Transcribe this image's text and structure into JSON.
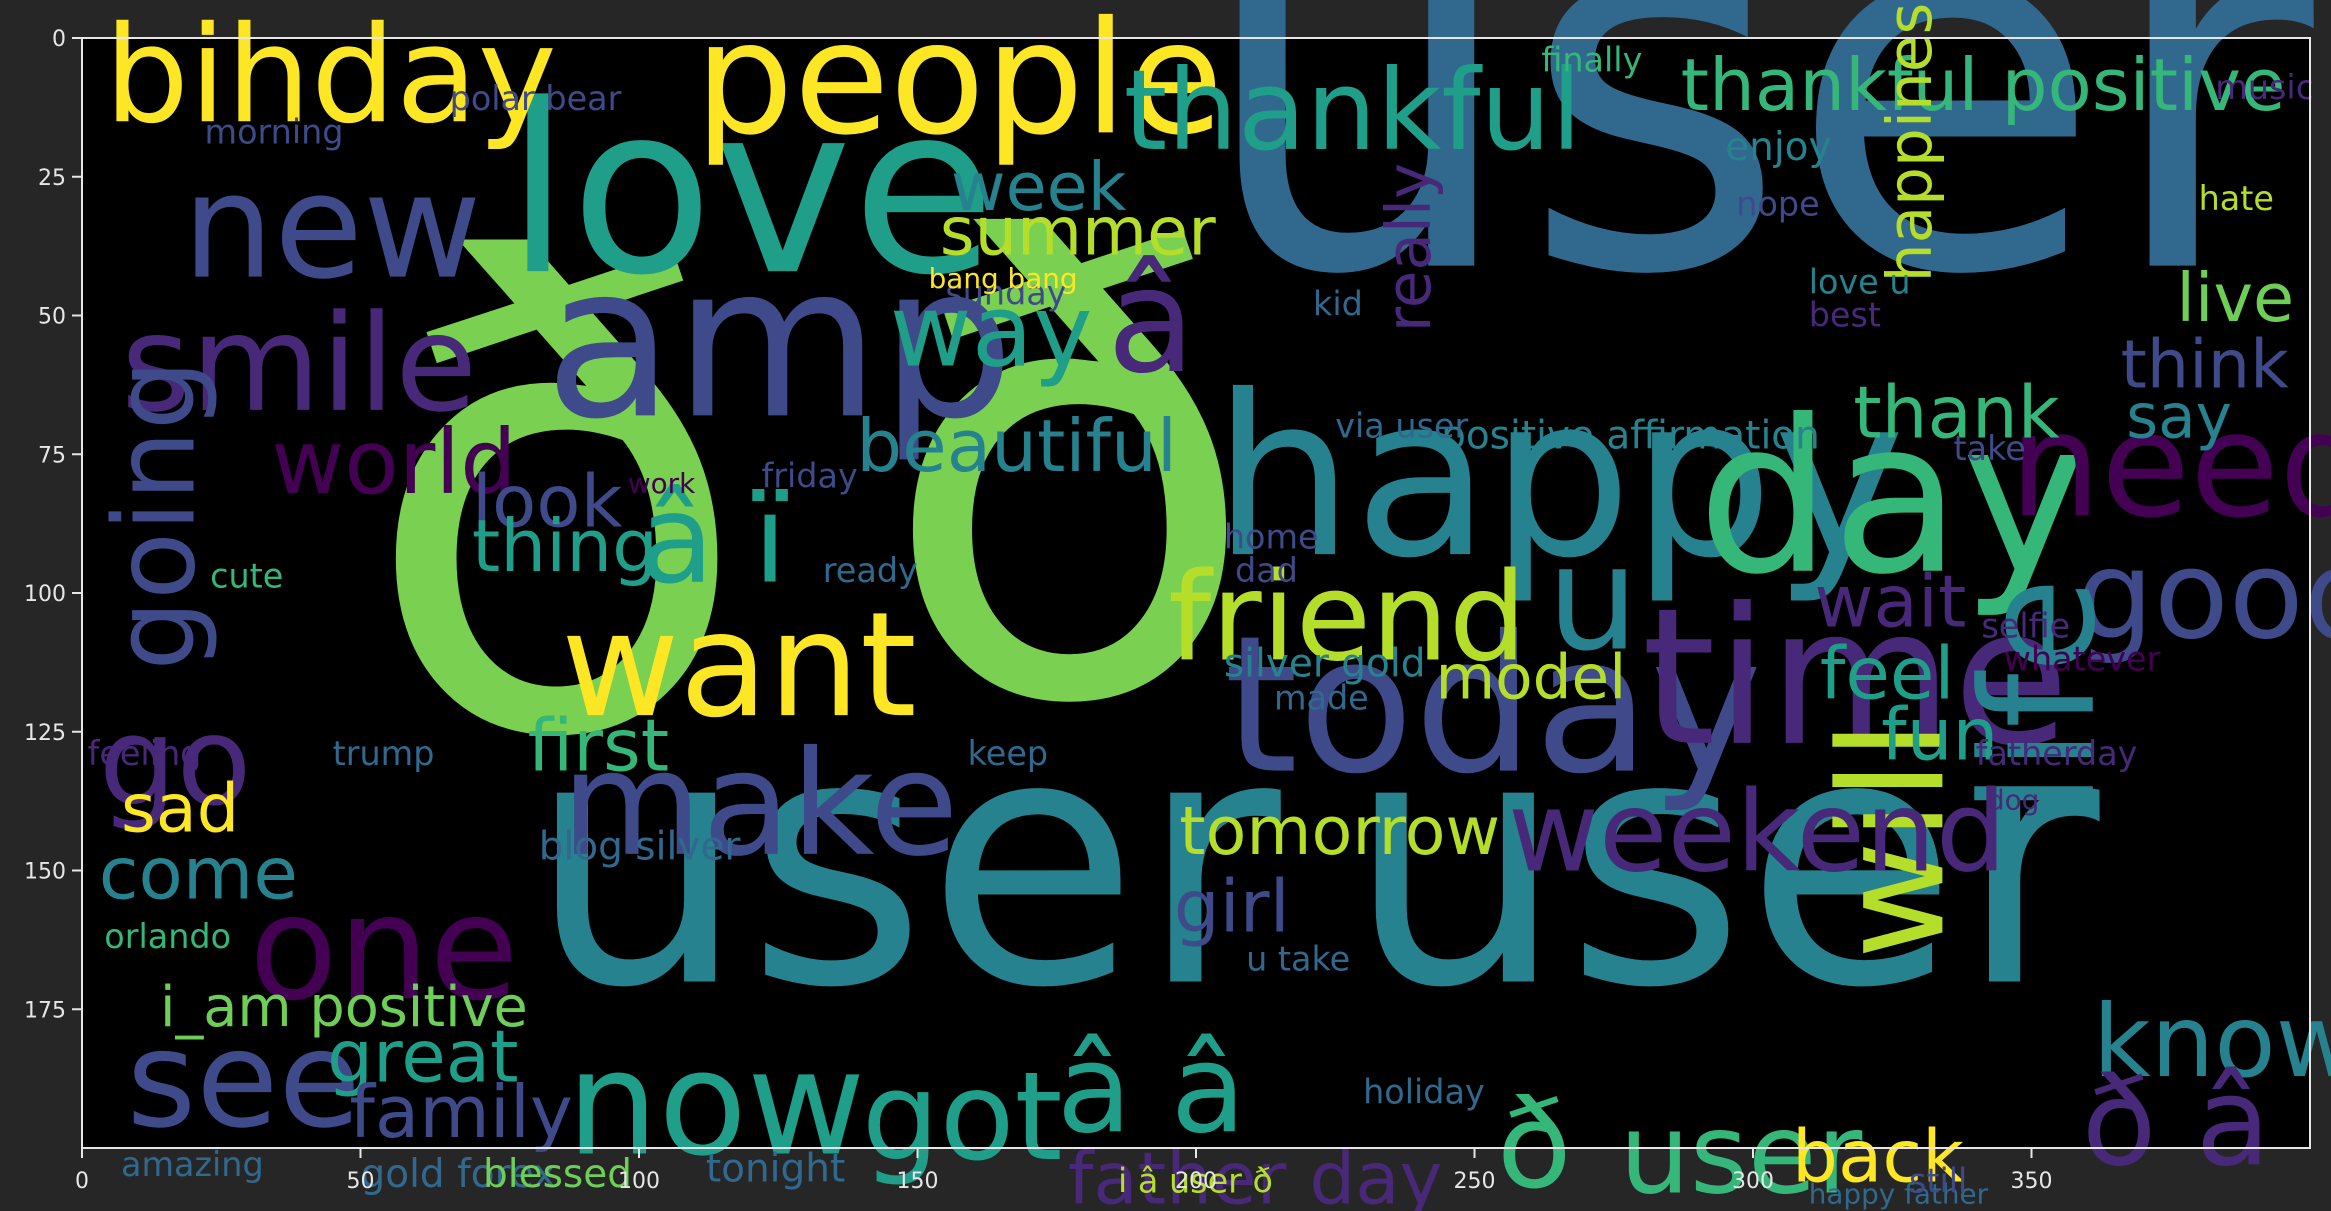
{
  "chart_data": {
    "type": "wordcloud",
    "xlim": [
      0,
      400
    ],
    "ylim": [
      200,
      0
    ],
    "x_ticks": [
      0,
      50,
      100,
      150,
      200,
      250,
      300,
      350
    ],
    "y_ticks": [
      0,
      25,
      50,
      75,
      100,
      125,
      150,
      175
    ],
    "background": "#000000",
    "axes_color": "#262626",
    "tick_label_color": "#e6e6e6",
    "palette": [
      "#440154",
      "#482878",
      "#3e4a89",
      "#31688e",
      "#26828e",
      "#1f9e89",
      "#35b779",
      "#6ece58",
      "#b5de2b",
      "#fde725"
    ],
    "words": [
      {
        "text": "user",
        "x": 200,
        "y": 41,
        "size": 92,
        "color": "#31688e",
        "angle": 0
      },
      {
        "text": "ð",
        "x": 50,
        "y": 124,
        "size": 115,
        "color": "#7ad151",
        "angle": 0
      },
      {
        "text": "ð",
        "x": 143,
        "y": 118,
        "size": 112,
        "color": "#7ad151",
        "angle": 0
      },
      {
        "text": "user",
        "x": 80,
        "y": 170,
        "size": 62,
        "color": "#26828e",
        "angle": 0
      },
      {
        "text": "user",
        "x": 227,
        "y": 170,
        "size": 62,
        "color": "#26828e",
        "angle": 0
      },
      {
        "text": "love",
        "x": 76,
        "y": 42,
        "size": 42,
        "color": "#1f9e89",
        "angle": 0
      },
      {
        "text": "amp",
        "x": 83,
        "y": 68,
        "size": 38,
        "color": "#3e4a89",
        "angle": 0
      },
      {
        "text": "happy",
        "x": 203,
        "y": 93,
        "size": 40,
        "color": "#26828e",
        "angle": 0
      },
      {
        "text": "day",
        "x": 290,
        "y": 96,
        "size": 38,
        "color": "#35b779",
        "angle": 0
      },
      {
        "text": "today",
        "x": 205,
        "y": 132,
        "size": 34,
        "color": "#3e4a89",
        "angle": 0
      },
      {
        "text": "time",
        "x": 280,
        "y": 127,
        "size": 34,
        "color": "#482878",
        "angle": 0
      },
      {
        "text": "people",
        "x": 110,
        "y": 17,
        "size": 28,
        "color": "#fde725",
        "angle": 0
      },
      {
        "text": "bihday",
        "x": 4,
        "y": 15,
        "size": 24,
        "color": "#fde725",
        "angle": 0
      },
      {
        "text": "new",
        "x": 18,
        "y": 43,
        "size": 26,
        "color": "#3e4a89",
        "angle": 0
      },
      {
        "text": "smile",
        "x": 7,
        "y": 67,
        "size": 24,
        "color": "#482878",
        "angle": 0
      },
      {
        "text": "world",
        "x": 34,
        "y": 82,
        "size": 16,
        "color": "#440154",
        "angle": 0
      },
      {
        "text": "going",
        "x": 20,
        "y": 114,
        "size": 20,
        "color": "#3e4a89",
        "angle": -90
      },
      {
        "text": "go",
        "x": 3,
        "y": 138,
        "size": 22,
        "color": "#482878",
        "angle": 0
      },
      {
        "text": "want",
        "x": 86,
        "y": 122,
        "size": 26,
        "color": "#fde725",
        "angle": 0
      },
      {
        "text": "make",
        "x": 86,
        "y": 147,
        "size": 26,
        "color": "#3e4a89",
        "angle": 0
      },
      {
        "text": "one",
        "x": 30,
        "y": 173,
        "size": 26,
        "color": "#440154",
        "angle": 0
      },
      {
        "text": "see",
        "x": 8,
        "y": 196,
        "size": 24,
        "color": "#3e4a89",
        "angle": 0
      },
      {
        "text": "now",
        "x": 87,
        "y": 201,
        "size": 26,
        "color": "#1f9e89",
        "angle": 0
      },
      {
        "text": "got",
        "x": 140,
        "y": 202,
        "size": 22,
        "color": "#1f9e89",
        "angle": 0
      },
      {
        "text": "great",
        "x": 44,
        "y": 188,
        "size": 13,
        "color": "#1f9e89",
        "angle": 0
      },
      {
        "text": "family",
        "x": 48,
        "y": 198,
        "size": 13,
        "color": "#3e4a89",
        "angle": 0
      },
      {
        "text": "thankful",
        "x": 187,
        "y": 20,
        "size": 20,
        "color": "#1f9e89",
        "angle": 0
      },
      {
        "text": "thankful positive",
        "x": 287,
        "y": 13,
        "size": 13,
        "color": "#35b779",
        "angle": 0
      },
      {
        "text": "week",
        "x": 156,
        "y": 31,
        "size": 12,
        "color": "#26828e",
        "angle": 0
      },
      {
        "text": "summer",
        "x": 154,
        "y": 39,
        "size": 12,
        "color": "#b5de2b",
        "angle": 0
      },
      {
        "text": "way",
        "x": 145,
        "y": 59,
        "size": 18,
        "color": "#1f9e89",
        "angle": 0
      },
      {
        "text": "â",
        "x": 184,
        "y": 60,
        "size": 26,
        "color": "#482878",
        "angle": 0
      },
      {
        "text": "beautiful",
        "x": 139,
        "y": 78,
        "size": 13,
        "color": "#26828e",
        "angle": 0
      },
      {
        "text": "look",
        "x": 70,
        "y": 88,
        "size": 13,
        "color": "#3e4a89",
        "angle": 0
      },
      {
        "text": "thing",
        "x": 70,
        "y": 96,
        "size": 13,
        "color": "#1f9e89",
        "angle": 0
      },
      {
        "text": "â ï",
        "x": 100,
        "y": 98,
        "size": 22,
        "color": "#1f9e89",
        "angle": 0
      },
      {
        "text": "friend",
        "x": 195,
        "y": 112,
        "size": 22,
        "color": "#b5de2b",
        "angle": 0
      },
      {
        "text": "u",
        "x": 263,
        "y": 110,
        "size": 26,
        "color": "#26828e",
        "angle": 0
      },
      {
        "text": "need",
        "x": 346,
        "y": 86,
        "size": 26,
        "color": "#440154",
        "angle": 0
      },
      {
        "text": "good",
        "x": 358,
        "y": 108,
        "size": 22,
        "color": "#3e4a89",
        "angle": 0
      },
      {
        "text": "life",
        "x": 361,
        "y": 140,
        "size": 28,
        "color": "#26828e",
        "angle": -90
      },
      {
        "text": "will",
        "x": 334,
        "y": 166,
        "size": 26,
        "color": "#b5de2b",
        "angle": -90
      },
      {
        "text": "know",
        "x": 361,
        "y": 187,
        "size": 18,
        "color": "#26828e",
        "angle": 0
      },
      {
        "text": "weekend",
        "x": 256,
        "y": 150,
        "size": 20,
        "color": "#482878",
        "angle": 0
      },
      {
        "text": "tomorrow",
        "x": 197,
        "y": 147,
        "size": 12,
        "color": "#b5de2b",
        "angle": 0
      },
      {
        "text": "model",
        "x": 243,
        "y": 119,
        "size": 11,
        "color": "#b5de2b",
        "angle": 0
      },
      {
        "text": "first",
        "x": 80,
        "y": 132,
        "size": 13,
        "color": "#35b779",
        "angle": 0
      },
      {
        "text": "sad",
        "x": 7,
        "y": 143,
        "size": 12,
        "color": "#fde725",
        "angle": 0
      },
      {
        "text": "come",
        "x": 3,
        "y": 155,
        "size": 13,
        "color": "#26828e",
        "angle": 0
      },
      {
        "text": "i_am positive",
        "x": 14,
        "y": 178,
        "size": 10,
        "color": "#6ece58",
        "angle": 0
      },
      {
        "text": "girl",
        "x": 196,
        "y": 161,
        "size": 13,
        "color": "#3e4a89",
        "angle": 0
      },
      {
        "text": "â â",
        "x": 175,
        "y": 197,
        "size": 22,
        "color": "#1f9e89",
        "angle": 0
      },
      {
        "text": "ð",
        "x": 254,
        "y": 207,
        "size": 22,
        "color": "#35b779",
        "angle": 0
      },
      {
        "text": "user",
        "x": 276,
        "y": 208,
        "size": 20,
        "color": "#35b779",
        "angle": 0
      },
      {
        "text": "father day",
        "x": 177,
        "y": 210,
        "size": 13,
        "color": "#482878",
        "angle": 0
      },
      {
        "text": "back",
        "x": 307,
        "y": 206,
        "size": 13,
        "color": "#fde725",
        "angle": 0
      },
      {
        "text": "ð â",
        "x": 359,
        "y": 203,
        "size": 22,
        "color": "#482878",
        "angle": 0
      },
      {
        "text": "feel",
        "x": 312,
        "y": 119,
        "size": 13,
        "color": "#1f9e89",
        "angle": 0
      },
      {
        "text": "wait",
        "x": 311,
        "y": 106,
        "size": 13,
        "color": "#482878",
        "angle": 0
      },
      {
        "text": "fun",
        "x": 323,
        "y": 130,
        "size": 13,
        "color": "#1f9e89",
        "angle": 0
      },
      {
        "text": "thank",
        "x": 318,
        "y": 72,
        "size": 13,
        "color": "#35b779",
        "angle": 0
      },
      {
        "text": "happiness",
        "x": 332,
        "y": 44,
        "size": 11,
        "color": "#b5de2b",
        "angle": -90
      },
      {
        "text": "really",
        "x": 242,
        "y": 53,
        "size": 11,
        "color": "#482878",
        "angle": -90
      },
      {
        "text": "live",
        "x": 376,
        "y": 51,
        "size": 12,
        "color": "#6ece58",
        "angle": 0
      },
      {
        "text": "think",
        "x": 366,
        "y": 63,
        "size": 12,
        "color": "#3e4a89",
        "angle": 0
      },
      {
        "text": "say",
        "x": 367,
        "y": 72,
        "size": 11,
        "color": "#26828e",
        "angle": 0
      },
      {
        "text": "enjoy",
        "x": 295,
        "y": 22,
        "size": 7,
        "color": "#26828e",
        "angle": 0
      },
      {
        "text": "positive affirmation",
        "x": 244,
        "y": 74,
        "size": 7,
        "color": "#26828e",
        "angle": 0
      },
      {
        "text": "silver gold",
        "x": 205,
        "y": 115,
        "size": 7,
        "color": "#26828e",
        "angle": 0
      },
      {
        "text": "blog silver",
        "x": 82,
        "y": 148,
        "size": 7,
        "color": "#31688e",
        "angle": 0
      },
      {
        "text": "gold forex",
        "x": 50,
        "y": 207,
        "size": 7,
        "color": "#31688e",
        "angle": 0
      },
      {
        "text": "blessed",
        "x": 72,
        "y": 207,
        "size": 7,
        "color": "#6ece58",
        "angle": 0
      },
      {
        "text": "tonight",
        "x": 112,
        "y": 206,
        "size": 7,
        "color": "#31688e",
        "angle": 0
      },
      {
        "text": "amazing",
        "x": 7,
        "y": 205,
        "size": 6,
        "color": "#31688e",
        "angle": 0
      },
      {
        "text": "orlando",
        "x": 4,
        "y": 164,
        "size": 6,
        "color": "#35b779",
        "angle": 0
      },
      {
        "text": "feeling",
        "x": 1,
        "y": 131,
        "size": 6,
        "color": "#482878",
        "angle": 0
      },
      {
        "text": "cute",
        "x": 23,
        "y": 99,
        "size": 6,
        "color": "#35b779",
        "angle": 0
      },
      {
        "text": "morning",
        "x": 22,
        "y": 19,
        "size": 6,
        "color": "#3e4a89",
        "angle": 0
      },
      {
        "text": "polar bear",
        "x": 66,
        "y": 13,
        "size": 6,
        "color": "#3e4a89",
        "angle": 0
      },
      {
        "text": "finally",
        "x": 262,
        "y": 6,
        "size": 6,
        "color": "#35b779",
        "angle": 0
      },
      {
        "text": "music",
        "x": 383,
        "y": 11,
        "size": 6,
        "color": "#482878",
        "angle": 0
      },
      {
        "text": "sunday",
        "x": 155,
        "y": 48,
        "size": 6,
        "color": "#3e4a89",
        "angle": 0
      },
      {
        "text": "friday",
        "x": 122,
        "y": 81,
        "size": 6,
        "color": "#3e4a89",
        "angle": 0
      },
      {
        "text": "ready",
        "x": 133,
        "y": 98,
        "size": 6,
        "color": "#31688e",
        "angle": 0
      },
      {
        "text": "trump",
        "x": 45,
        "y": 131,
        "size": 6,
        "color": "#31688e",
        "angle": 0
      },
      {
        "text": "love u",
        "x": 310,
        "y": 46,
        "size": 6,
        "color": "#26828e",
        "angle": 0
      },
      {
        "text": "nope",
        "x": 297,
        "y": 32,
        "size": 6,
        "color": "#3e4a89",
        "angle": 0
      },
      {
        "text": "hate",
        "x": 380,
        "y": 31,
        "size": 6,
        "color": "#b5de2b",
        "angle": 0
      },
      {
        "text": "best",
        "x": 310,
        "y": 52,
        "size": 6,
        "color": "#482878",
        "angle": 0
      },
      {
        "text": "home",
        "x": 205,
        "y": 92,
        "size": 6,
        "color": "#3e4a89",
        "angle": 0
      },
      {
        "text": "dad",
        "x": 207,
        "y": 98,
        "size": 6,
        "color": "#3e4a89",
        "angle": 0
      },
      {
        "text": "made",
        "x": 214,
        "y": 121,
        "size": 6,
        "color": "#31688e",
        "angle": 0
      },
      {
        "text": "keep",
        "x": 159,
        "y": 131,
        "size": 6,
        "color": "#31688e",
        "angle": 0
      },
      {
        "text": "u take",
        "x": 209,
        "y": 168,
        "size": 6,
        "color": "#31688e",
        "angle": 0
      },
      {
        "text": "holiday",
        "x": 230,
        "y": 192,
        "size": 6,
        "color": "#31688e",
        "angle": 0
      },
      {
        "text": "fatherday",
        "x": 340,
        "y": 131,
        "size": 6,
        "color": "#482878",
        "angle": 0
      },
      {
        "text": "whatever",
        "x": 345,
        "y": 114,
        "size": 6,
        "color": "#440154",
        "angle": 0
      },
      {
        "text": "selfie",
        "x": 341,
        "y": 108,
        "size": 6,
        "color": "#482878",
        "angle": 0
      },
      {
        "text": "take",
        "x": 336,
        "y": 76,
        "size": 6,
        "color": "#3e4a89",
        "angle": 0
      },
      {
        "text": "via user",
        "x": 225,
        "y": 72,
        "size": 6,
        "color": "#31688e",
        "angle": 0
      },
      {
        "text": "i â user ð",
        "x": 186,
        "y": 208,
        "size": 6,
        "color": "#b5de2b",
        "angle": 0
      },
      {
        "text": "happy father",
        "x": 310,
        "y": 210,
        "size": 5,
        "color": "#31688e",
        "angle": 0
      },
      {
        "text": "still",
        "x": 328,
        "y": 208,
        "size": 6,
        "color": "#3e4a89",
        "angle": 0
      },
      {
        "text": "kid",
        "x": 221,
        "y": 50,
        "size": 6,
        "color": "#31688e",
        "angle": 0
      },
      {
        "text": "work",
        "x": 98,
        "y": 82,
        "size": 5,
        "color": "#440154",
        "angle": 0
      },
      {
        "text": "dog",
        "x": 342,
        "y": 139,
        "size": 5,
        "color": "#482878",
        "angle": 0
      },
      {
        "text": "bang bang",
        "x": 152,
        "y": 45,
        "size": 5,
        "color": "#fde725",
        "angle": 0
      }
    ]
  }
}
